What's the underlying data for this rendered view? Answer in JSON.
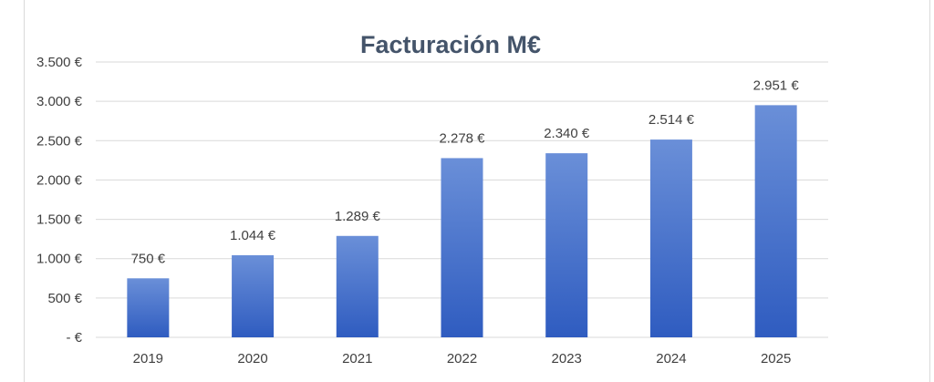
{
  "chart_data": {
    "type": "bar",
    "title": "Facturación M€",
    "xlabel": "",
    "ylabel": "",
    "categories": [
      "2019",
      "2020",
      "2021",
      "2022",
      "2023",
      "2024",
      "2025"
    ],
    "values": [
      750,
      1044,
      1289,
      2278,
      2340,
      2514,
      2951
    ],
    "data_labels": [
      "750 €",
      "1.044 €",
      "1.289 €",
      "2.278 €",
      "2.340 €",
      "2.514 €",
      "2.951 €"
    ],
    "ylim": [
      0,
      3500
    ],
    "y_ticks": [
      0,
      500,
      1000,
      1500,
      2000,
      2500,
      3000,
      3500
    ],
    "y_tick_labels": [
      "-  €",
      "500 €",
      "1.000 €",
      "1.500 €",
      "2.000 €",
      "2.500 €",
      "3.000 €",
      "3.500 €"
    ],
    "grid": true,
    "legend": "none",
    "colors": {
      "bar_top": "#6a8fd8",
      "bar_bottom": "#2f5cc0",
      "title": "#44546a",
      "text": "#404040",
      "grid": "#d9d9d9"
    }
  }
}
